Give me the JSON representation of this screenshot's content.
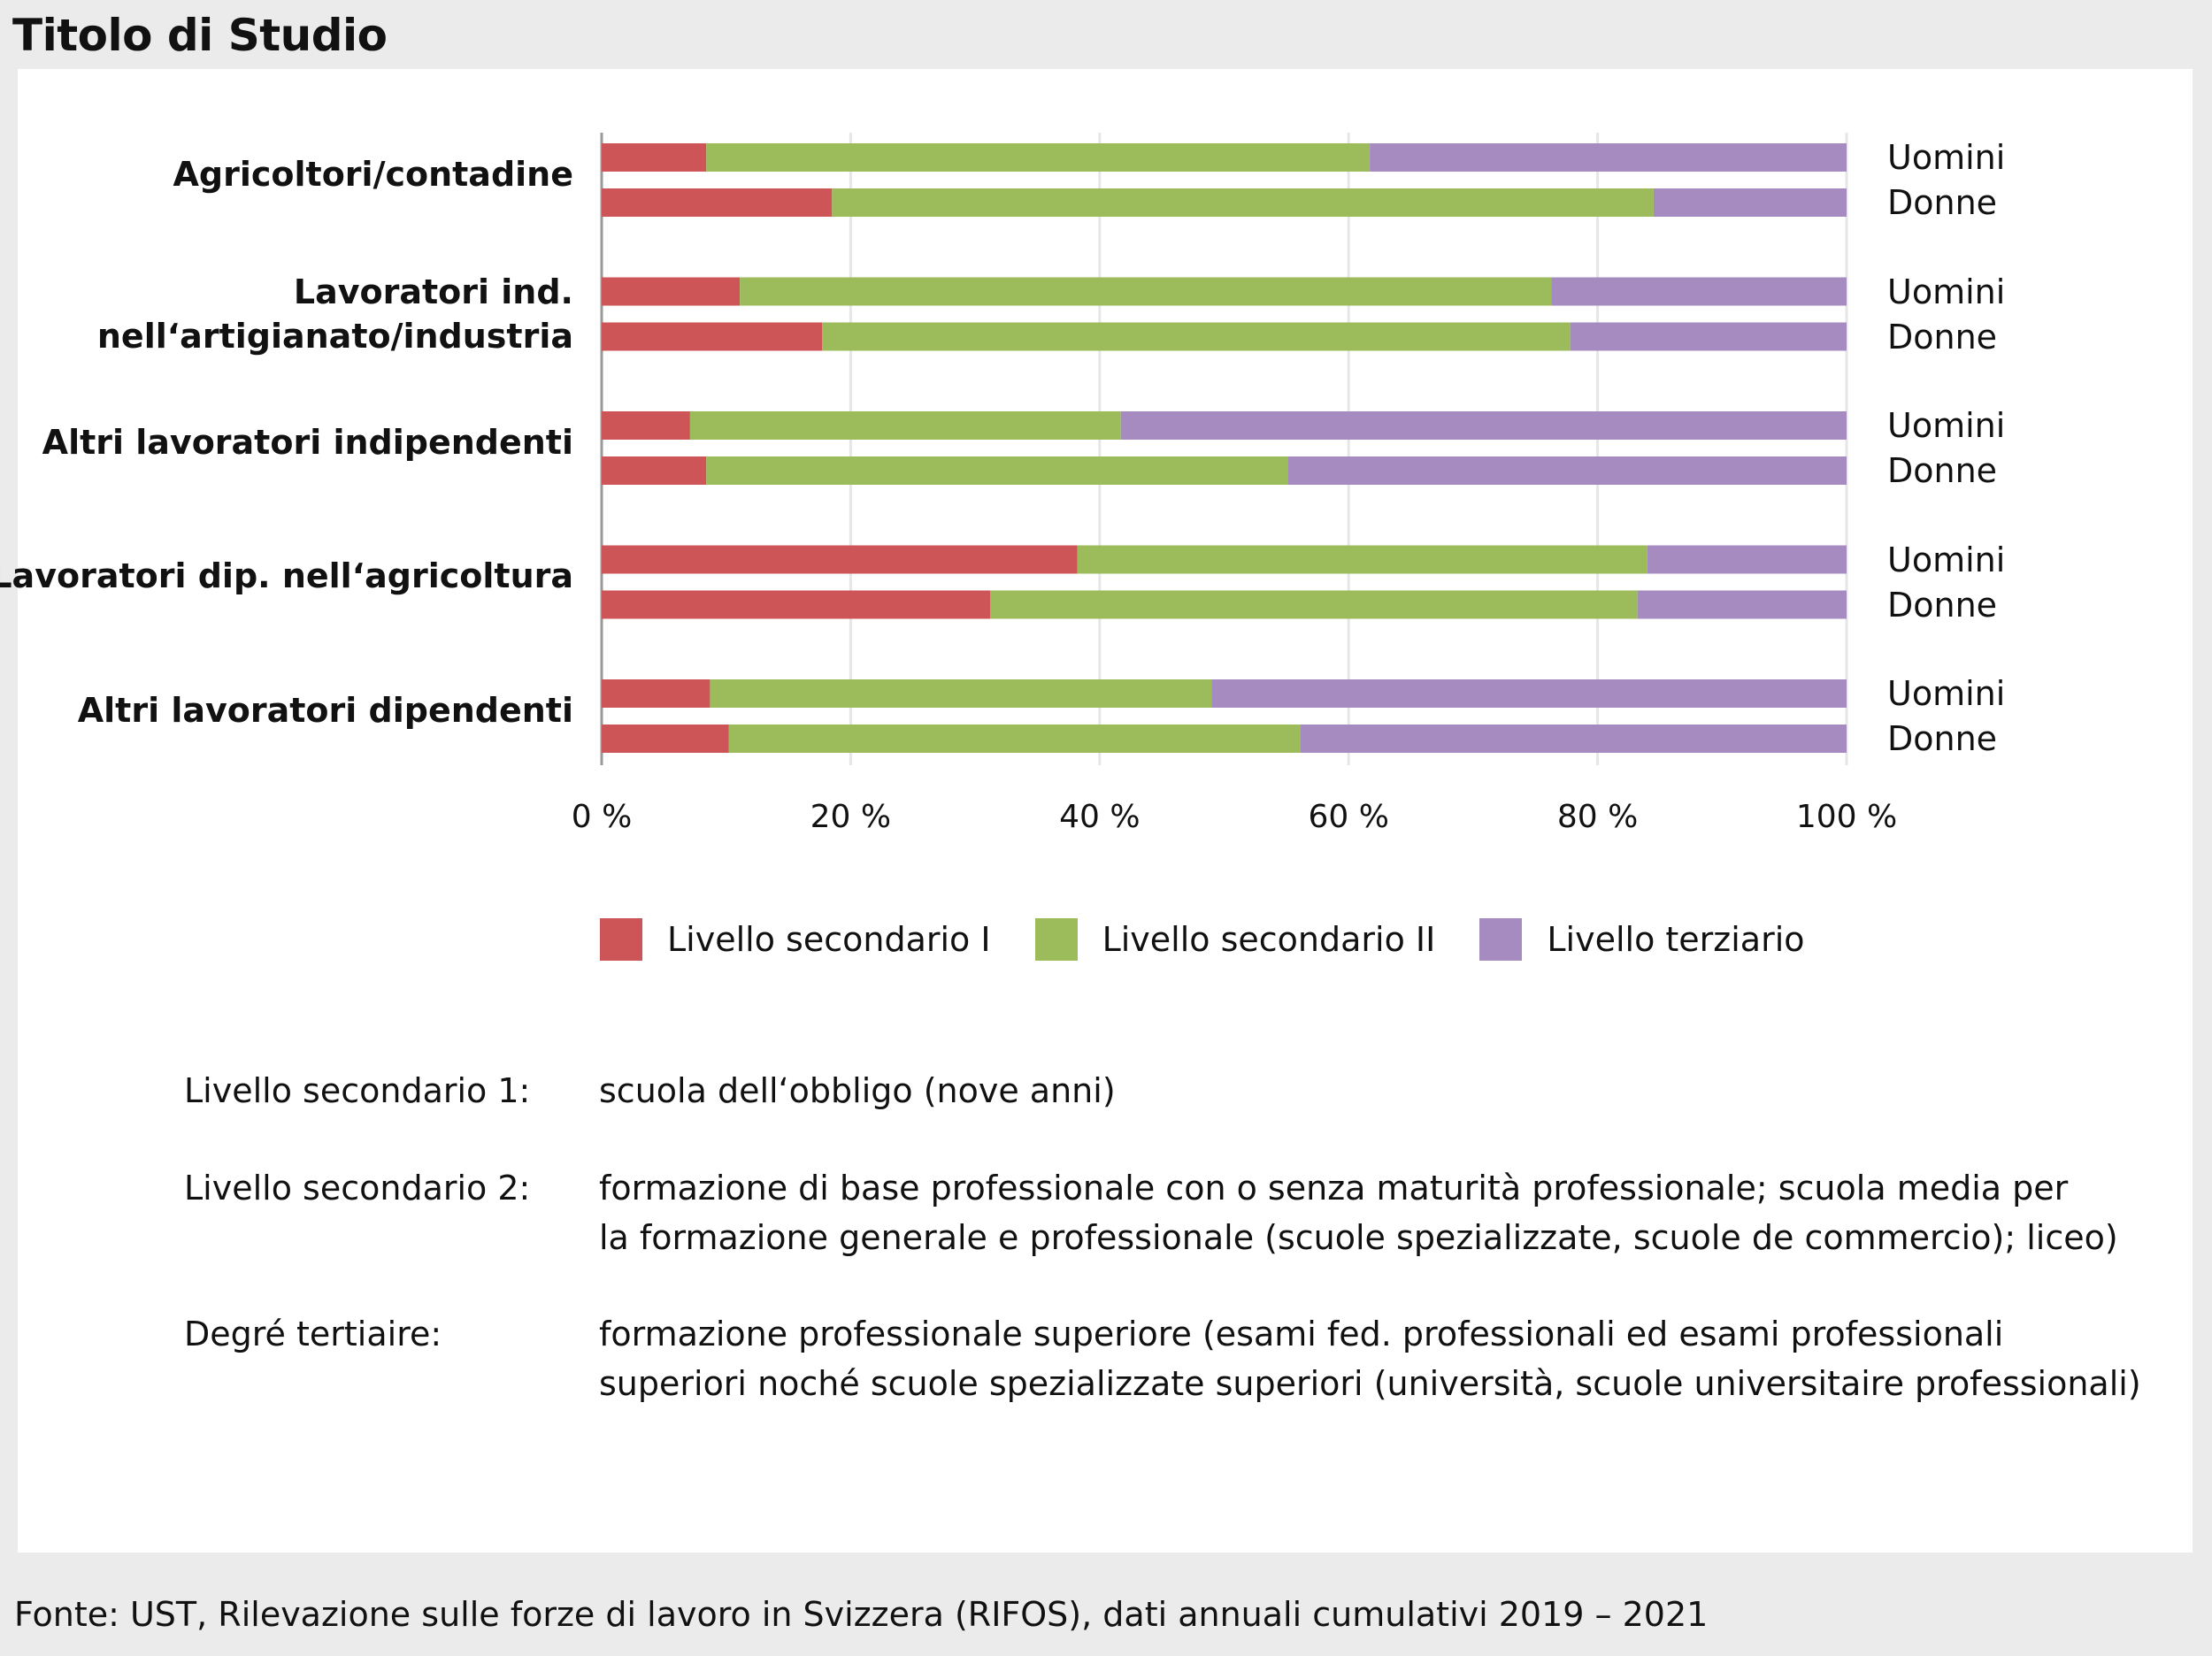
{
  "title": "Titolo di Studio",
  "colors": {
    "secondary1": "#cd5557",
    "secondary2": "#9cbb5a",
    "tertiary": "#a68bc0",
    "grid": "#e6e6e6",
    "axis": "#999999"
  },
  "chart_data": {
    "type": "bar",
    "orientation": "horizontal",
    "stacked": true,
    "title": "Titolo di Studio",
    "xlim": [
      0,
      100
    ],
    "x_ticks": [
      "0 %",
      "20 %",
      "40 %",
      "60 %",
      "80 %",
      "100 %"
    ],
    "series_names": [
      "Livello secondario I",
      "Livello secondario II",
      "Livello terziario"
    ],
    "categories": [
      {
        "label_lines": [
          "Agricoltori/contadine"
        ],
        "rows": [
          {
            "sex": "Uomini",
            "values": [
              8.4,
              53.3,
              38.3
            ]
          },
          {
            "sex": "Donne",
            "values": [
              18.5,
              66.0,
              15.5
            ]
          }
        ]
      },
      {
        "label_lines": [
          "Lavoratori ind.",
          "nell‘artigianato/industria"
        ],
        "rows": [
          {
            "sex": "Uomini",
            "values": [
              11.1,
              65.2,
              23.7
            ]
          },
          {
            "sex": "Donne",
            "values": [
              17.7,
              60.1,
              22.2
            ]
          }
        ]
      },
      {
        "label_lines": [
          "Altri lavoratori indipendenti"
        ],
        "rows": [
          {
            "sex": "Uomini",
            "values": [
              7.1,
              34.6,
              58.3
            ]
          },
          {
            "sex": "Donne",
            "values": [
              8.4,
              46.7,
              44.9
            ]
          }
        ]
      },
      {
        "label_lines": [
          "Lavoratori dip. nell‘agricoltura"
        ],
        "rows": [
          {
            "sex": "Uomini",
            "values": [
              38.2,
              45.8,
              16.0
            ]
          },
          {
            "sex": "Donne",
            "values": [
              31.2,
              52.0,
              16.8
            ]
          }
        ]
      },
      {
        "label_lines": [
          "Altri lavoratori dipendenti"
        ],
        "rows": [
          {
            "sex": "Uomini",
            "values": [
              8.7,
              40.3,
              51.0
            ]
          },
          {
            "sex": "Donne",
            "values": [
              10.2,
              45.9,
              43.9
            ]
          }
        ]
      }
    ]
  },
  "legend": [
    {
      "label": "Livello secondario I",
      "color": "#cd5557"
    },
    {
      "label": "Livello secondario II",
      "color": "#9cbb5a"
    },
    {
      "label": "Livello terziario",
      "color": "#a68bc0"
    }
  ],
  "definitions": [
    {
      "term": "Livello secondario 1:",
      "lines": [
        "scuola dell‘obbligo (nove anni)"
      ]
    },
    {
      "term": "Livello secondario 2:",
      "lines": [
        "formazione di base professionale con o senza maturità professionale; scuola media per",
        "la formazione generale e professionale (scuole spezializzate, scuole de commercio); liceo)"
      ]
    },
    {
      "term": "Degré tertiaire:",
      "lines": [
        "formazione professionale superiore (esami fed. professionali ed esami professionali",
        "superiori noché scuole spezializzate superiori (università, scuole universitaire professionali)"
      ]
    }
  ],
  "source": "Fonte: UST, Rilevazione sulle forze di lavoro in Svizzera (RIFOS), dati annuali cumulativi 2019 – 2021"
}
